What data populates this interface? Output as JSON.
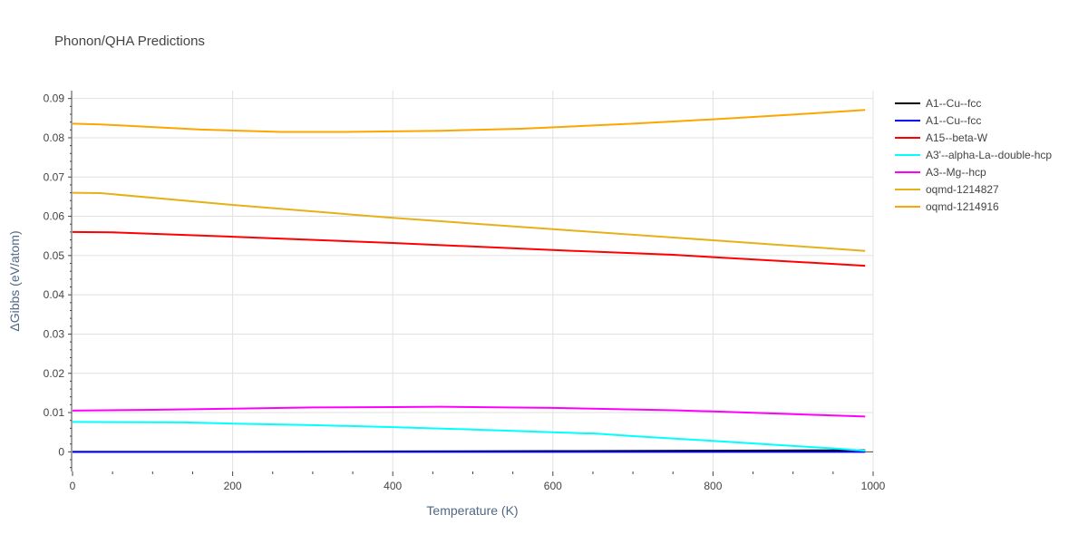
{
  "chart_data": {
    "type": "line",
    "title": "Phonon/QHA Predictions",
    "xlabel": "Temperature (K)",
    "ylabel": "ΔGibbs (eV/atom)",
    "xlim": [
      0,
      1000
    ],
    "ylim": [
      -0.005,
      0.092
    ],
    "xticks": [
      0,
      200,
      400,
      600,
      800,
      1000
    ],
    "yticks": [
      0,
      0.01,
      0.02,
      0.03,
      0.04,
      0.05,
      0.06,
      0.07,
      0.08,
      0.09
    ],
    "ytick_labels": [
      "0",
      "0.01",
      "0.02",
      "0.03",
      "0.04",
      "0.05",
      "0.06",
      "0.07",
      "0.08",
      "0.09"
    ],
    "grid": true,
    "legend_position": "right",
    "series": [
      {
        "name": "A1--Cu--fcc",
        "color": "#000000",
        "x": [
          0,
          200,
          400,
          600,
          800,
          990
        ],
        "y": [
          0.0,
          0.0,
          0.0001,
          0.0002,
          0.0003,
          0.0004
        ]
      },
      {
        "name": "A1--Cu--fcc",
        "color": "#0000ff",
        "x": [
          0,
          200,
          400,
          600,
          800,
          990
        ],
        "y": [
          0.0,
          0.0,
          0.0,
          0.0,
          0.0,
          0.0
        ]
      },
      {
        "name": "A15--beta-W",
        "color": "#ff0000",
        "x": [
          0,
          50,
          200,
          400,
          600,
          750,
          800,
          990
        ],
        "y": [
          0.056,
          0.0559,
          0.0548,
          0.0532,
          0.0514,
          0.0502,
          0.0496,
          0.0474
        ]
      },
      {
        "name": "A3'--alpha-La--double-hcp",
        "color": "#00ffff",
        "x": [
          0,
          140,
          200,
          300,
          400,
          500,
          600,
          640,
          650,
          700,
          800,
          900,
          950,
          990
        ],
        "y": [
          0.0076,
          0.0075,
          0.0072,
          0.0068,
          0.0063,
          0.0057,
          0.005,
          0.0047,
          0.0047,
          0.004,
          0.0028,
          0.0015,
          0.0009,
          0.0003
        ]
      },
      {
        "name": "A3--Mg--hcp",
        "color": "#ff00ff",
        "x": [
          0,
          100,
          200,
          300,
          400,
          460,
          500,
          600,
          700,
          750,
          800,
          900,
          990
        ],
        "y": [
          0.0105,
          0.0107,
          0.011,
          0.0113,
          0.0114,
          0.0115,
          0.0114,
          0.0112,
          0.0108,
          0.0106,
          0.0103,
          0.0096,
          0.009
        ]
      },
      {
        "name": "oqmd-1214827",
        "color": "#e6b117",
        "x": [
          0,
          35,
          200,
          400,
          600,
          800,
          990
        ],
        "y": [
          0.066,
          0.0659,
          0.0629,
          0.0596,
          0.0567,
          0.0539,
          0.0512
        ]
      },
      {
        "name": "oqmd-1214916",
        "color": "#ffa500",
        "x": [
          0,
          35,
          160,
          260,
          340,
          460,
          560,
          700,
          800,
          900,
          990
        ],
        "y": [
          0.0836,
          0.0834,
          0.0821,
          0.0815,
          0.0815,
          0.0818,
          0.0823,
          0.0836,
          0.0847,
          0.0859,
          0.0871
        ]
      }
    ]
  }
}
